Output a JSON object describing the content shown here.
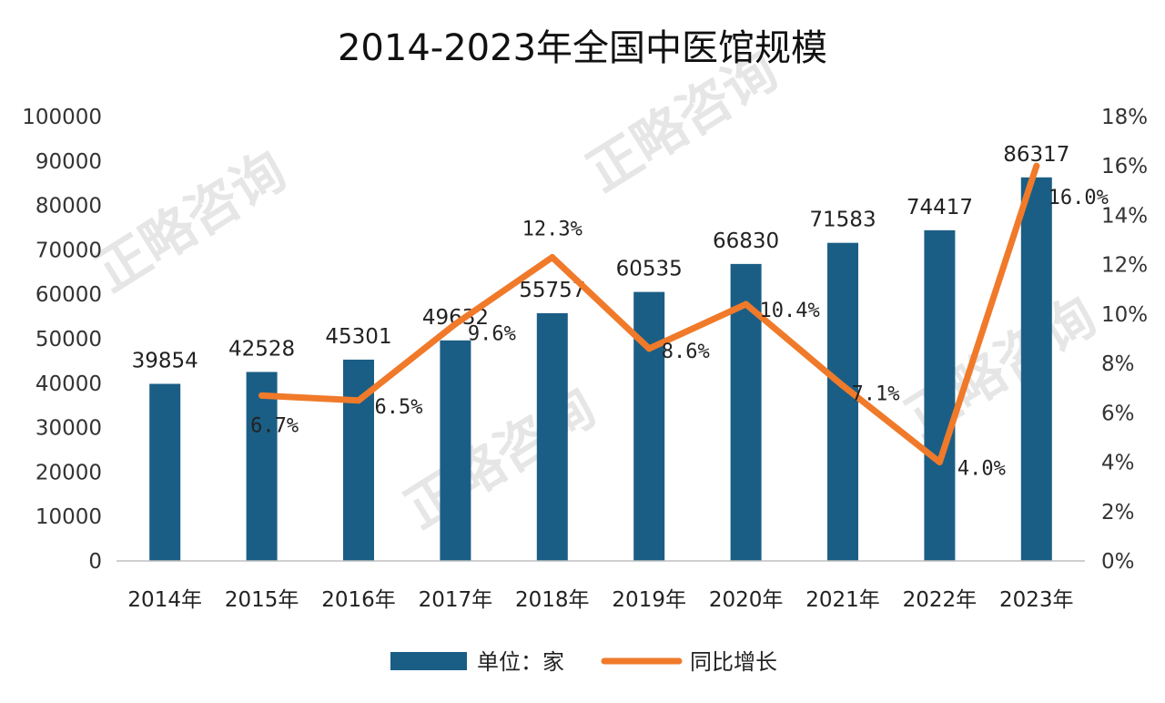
{
  "watermark": "正略咨询",
  "chart_data": {
    "type": "bar",
    "title": "2014-2023年全国中医馆规模",
    "categories": [
      "2014年",
      "2015年",
      "2016年",
      "2017年",
      "2018年",
      "2019年",
      "2020年",
      "2021年",
      "2022年",
      "2023年"
    ],
    "series": [
      {
        "name": "单位：家",
        "type": "bar",
        "axis": "left",
        "color": "#1b5e85",
        "values": [
          39854,
          42528,
          45301,
          49632,
          55757,
          60535,
          66830,
          71583,
          74417,
          86317
        ],
        "labels": [
          "39854",
          "42528",
          "45301",
          "49632",
          "55757",
          "60535",
          "66830",
          "71583",
          "74417",
          "86317"
        ]
      },
      {
        "name": "同比增长",
        "type": "line",
        "axis": "right",
        "color": "#f07a2a",
        "values": [
          null,
          6.7,
          6.5,
          9.6,
          12.3,
          8.6,
          10.4,
          7.1,
          4.0,
          16.0
        ],
        "labels": [
          "",
          "6.7%",
          "6.5%",
          "9.6%",
          "12.3%",
          "8.6%",
          "10.4%",
          "7.1%",
          "4.0%",
          "16.0%"
        ]
      }
    ],
    "y_left": {
      "range": [
        0,
        100000
      ],
      "ticks": [
        "0",
        "10000",
        "20000",
        "30000",
        "40000",
        "50000",
        "60000",
        "70000",
        "80000",
        "90000",
        "100000"
      ]
    },
    "y_right": {
      "range": [
        0,
        18
      ],
      "ticks": [
        "0%",
        "2%",
        "4%",
        "6%",
        "8%",
        "10%",
        "12%",
        "14%",
        "16%",
        "18%"
      ]
    },
    "grid": false,
    "legend_position": "bottom"
  }
}
